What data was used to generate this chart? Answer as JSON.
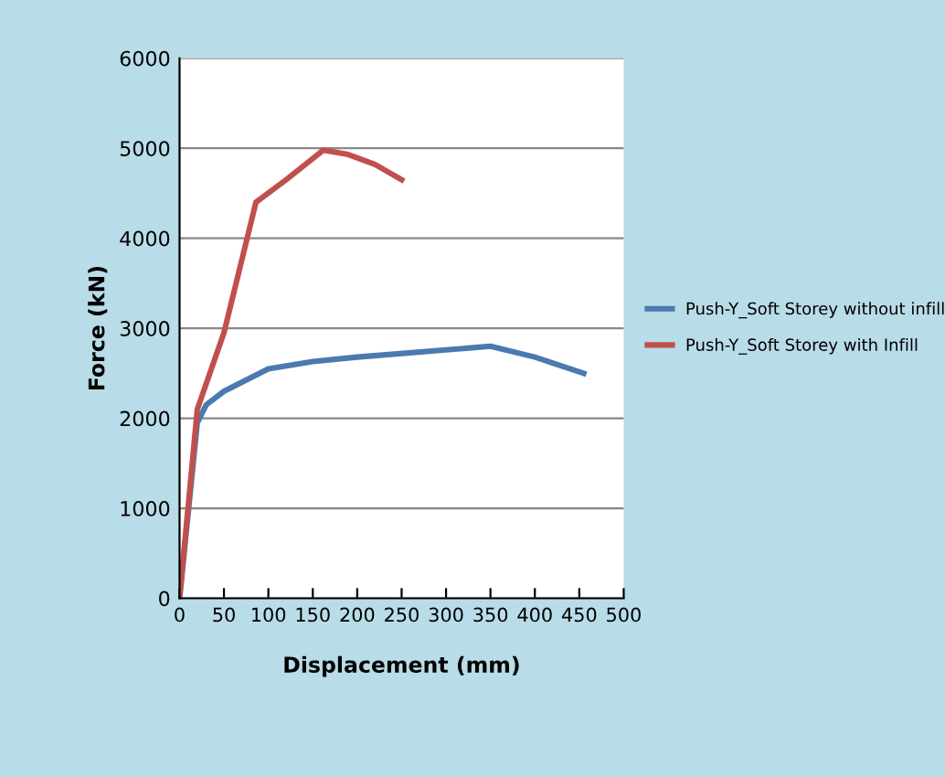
{
  "chart_data": {
    "type": "line",
    "xlabel": "Displacement (mm)",
    "ylabel": "Force (kN)",
    "xlim": [
      0,
      500
    ],
    "xticks": [
      0,
      50,
      100,
      150,
      200,
      250,
      300,
      350,
      400,
      450,
      500
    ],
    "ylim": [
      0,
      6000
    ],
    "yticks": [
      0,
      1000,
      2000,
      3000,
      4000,
      5000,
      6000
    ],
    "grid": "y",
    "legend": "right",
    "marker": "none",
    "series": [
      {
        "name": "Push-Y_Soft Storey without infill",
        "color": "#4a7ab0",
        "x": [
          0,
          20,
          30,
          50,
          100,
          150,
          200,
          300,
          350,
          400,
          455
        ],
        "values": [
          0,
          1950,
          2150,
          2300,
          2550,
          2630,
          2680,
          2760,
          2800,
          2680,
          2500
        ]
      },
      {
        "name": "Push-Y_Soft Storey with Infill",
        "color": "#c0504d",
        "x": [
          0,
          20,
          50,
          86,
          120,
          162,
          190,
          220,
          250
        ],
        "values": [
          0,
          2100,
          2950,
          4400,
          4650,
          4980,
          4930,
          4820,
          4650
        ]
      }
    ]
  }
}
